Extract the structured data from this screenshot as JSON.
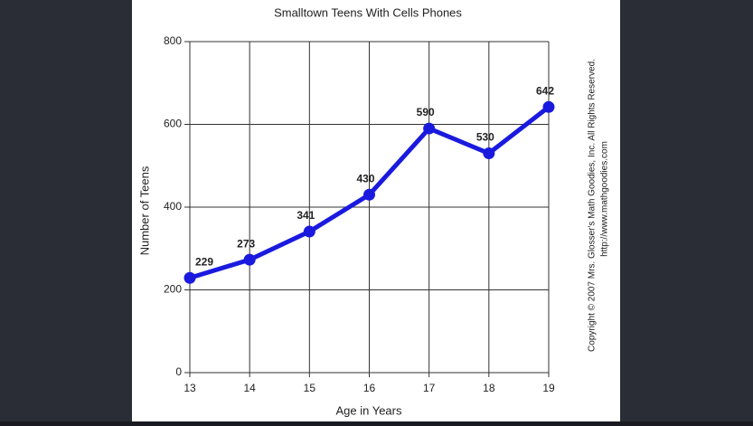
{
  "chart_data": {
    "type": "line",
    "title": "Smalltown Teens With Cells Phones",
    "x_label": "Age in Years",
    "y_label": "Number of Teens",
    "x": [
      13,
      14,
      15,
      16,
      17,
      18,
      19
    ],
    "series": [
      {
        "name": "Teens with cell phones",
        "color": "#1a1adf",
        "values": [
          229,
          273,
          341,
          430,
          590,
          530,
          642
        ]
      }
    ],
    "xlim": [
      13,
      19
    ],
    "xticks": [
      13,
      14,
      15,
      16,
      17,
      18,
      19
    ],
    "ylim": [
      0,
      800
    ],
    "yticks": [
      0,
      200,
      400,
      600,
      800
    ],
    "grid": true,
    "annotations": [
      "Copyright © 2007 Mrs. Glosser's Math Goodies, Inc.  All Rights Reserved.",
      "http://www.mathgoodies.com"
    ]
  }
}
